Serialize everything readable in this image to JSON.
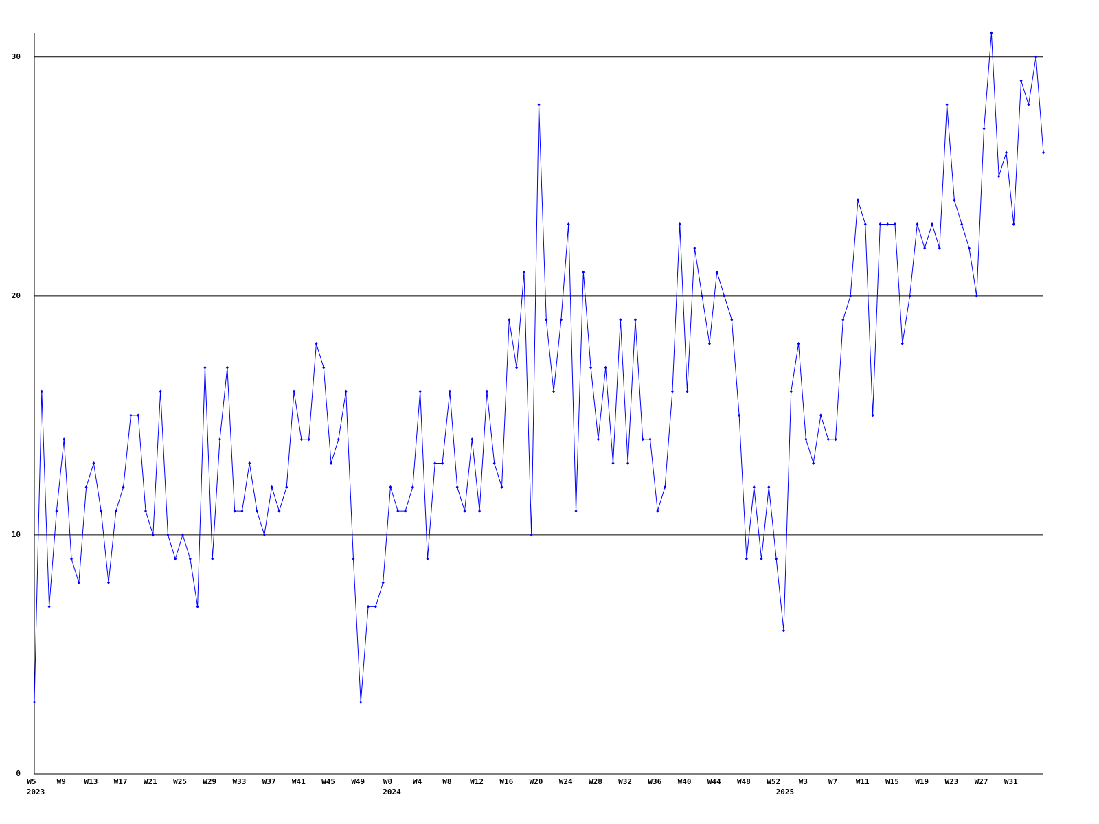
{
  "chart_data": {
    "type": "line",
    "categories": [
      "W5",
      null,
      null,
      null,
      "W9",
      null,
      null,
      null,
      "W13",
      null,
      null,
      null,
      "W17",
      null,
      null,
      null,
      "W21",
      null,
      null,
      null,
      "W25",
      null,
      null,
      null,
      "W29",
      null,
      null,
      null,
      "W33",
      null,
      null,
      null,
      "W37",
      null,
      null,
      null,
      "W41",
      null,
      null,
      null,
      "W45",
      null,
      null,
      null,
      "W49",
      null,
      null,
      null,
      "W0",
      null,
      null,
      null,
      "W4",
      null,
      null,
      null,
      "W8",
      null,
      null,
      null,
      "W12",
      null,
      null,
      null,
      "W16",
      null,
      null,
      null,
      "W20",
      null,
      null,
      null,
      "W24",
      null,
      null,
      null,
      "W28",
      null,
      null,
      null,
      "W32",
      null,
      null,
      null,
      "W36",
      null,
      null,
      null,
      "W40",
      null,
      null,
      null,
      "W44",
      null,
      null,
      null,
      "W48",
      null,
      null,
      null,
      "W52",
      null,
      null,
      null,
      "W3",
      null,
      null,
      null,
      "W7",
      null,
      null,
      null,
      "W11",
      null,
      null,
      null,
      "W15",
      null,
      null,
      null,
      "W19",
      null,
      null,
      null,
      "W23",
      null,
      null,
      null,
      "W27",
      null,
      null,
      null,
      "W31",
      null,
      null,
      null,
      null
    ],
    "category_years": [
      "2023",
      null,
      null,
      null,
      null,
      null,
      null,
      null,
      null,
      null,
      null,
      null,
      null,
      null,
      null,
      null,
      null,
      null,
      null,
      null,
      null,
      null,
      null,
      null,
      null,
      null,
      null,
      null,
      null,
      null,
      null,
      null,
      null,
      null,
      null,
      null,
      null,
      null,
      null,
      null,
      null,
      null,
      null,
      null,
      null,
      null,
      null,
      null,
      "2024",
      null,
      null,
      null,
      null,
      null,
      null,
      null,
      null,
      null,
      null,
      null,
      null,
      null,
      null,
      null,
      null,
      null,
      null,
      null,
      null,
      null,
      null,
      null,
      null,
      null,
      null,
      null,
      null,
      null,
      null,
      null,
      null,
      null,
      null,
      null,
      null,
      null,
      null,
      null,
      null,
      null,
      null,
      null,
      null,
      null,
      null,
      null,
      null,
      null,
      null,
      null,
      null,
      "2025",
      null,
      null,
      null,
      null,
      null,
      null,
      null,
      null,
      null,
      null,
      null,
      null,
      null,
      null,
      null,
      null,
      null,
      null,
      null,
      null,
      null,
      null,
      null,
      null,
      null,
      null,
      null,
      null,
      null,
      null,
      null,
      null,
      null,
      null,
      null
    ],
    "series": [
      {
        "color": "#0000ff",
        "values": [
          3,
          16,
          7,
          11,
          14,
          9,
          8,
          12,
          13,
          11,
          8,
          11,
          12,
          15,
          15,
          11,
          10,
          16,
          10,
          9,
          10,
          9,
          7,
          17,
          9,
          14,
          17,
          11,
          11,
          13,
          11,
          10,
          12,
          11,
          12,
          16,
          14,
          14,
          18,
          17,
          13,
          14,
          16,
          9,
          3,
          7,
          7,
          8,
          12,
          11,
          11,
          12,
          16,
          9,
          13,
          13,
          16,
          12,
          11,
          14,
          11,
          16,
          13,
          12,
          19,
          17,
          21,
          10,
          28,
          19,
          16,
          19,
          23,
          11,
          21,
          17,
          14,
          17,
          13,
          19,
          13,
          19,
          14,
          14,
          11,
          12,
          16,
          23,
          16,
          22,
          20,
          18,
          21,
          20,
          19,
          15,
          9,
          12,
          9,
          12,
          9,
          6,
          16,
          18,
          14,
          13,
          15,
          14,
          14,
          19,
          20,
          24,
          23,
          15,
          23,
          23,
          23,
          18,
          20,
          23,
          22,
          23,
          22,
          28,
          24,
          23,
          22,
          20,
          27,
          31,
          25,
          26,
          23,
          29,
          28,
          30,
          26
        ]
      }
    ],
    "ylim": [
      0,
      31
    ],
    "yticks": [
      0,
      10,
      20,
      30
    ],
    "grid": true
  }
}
